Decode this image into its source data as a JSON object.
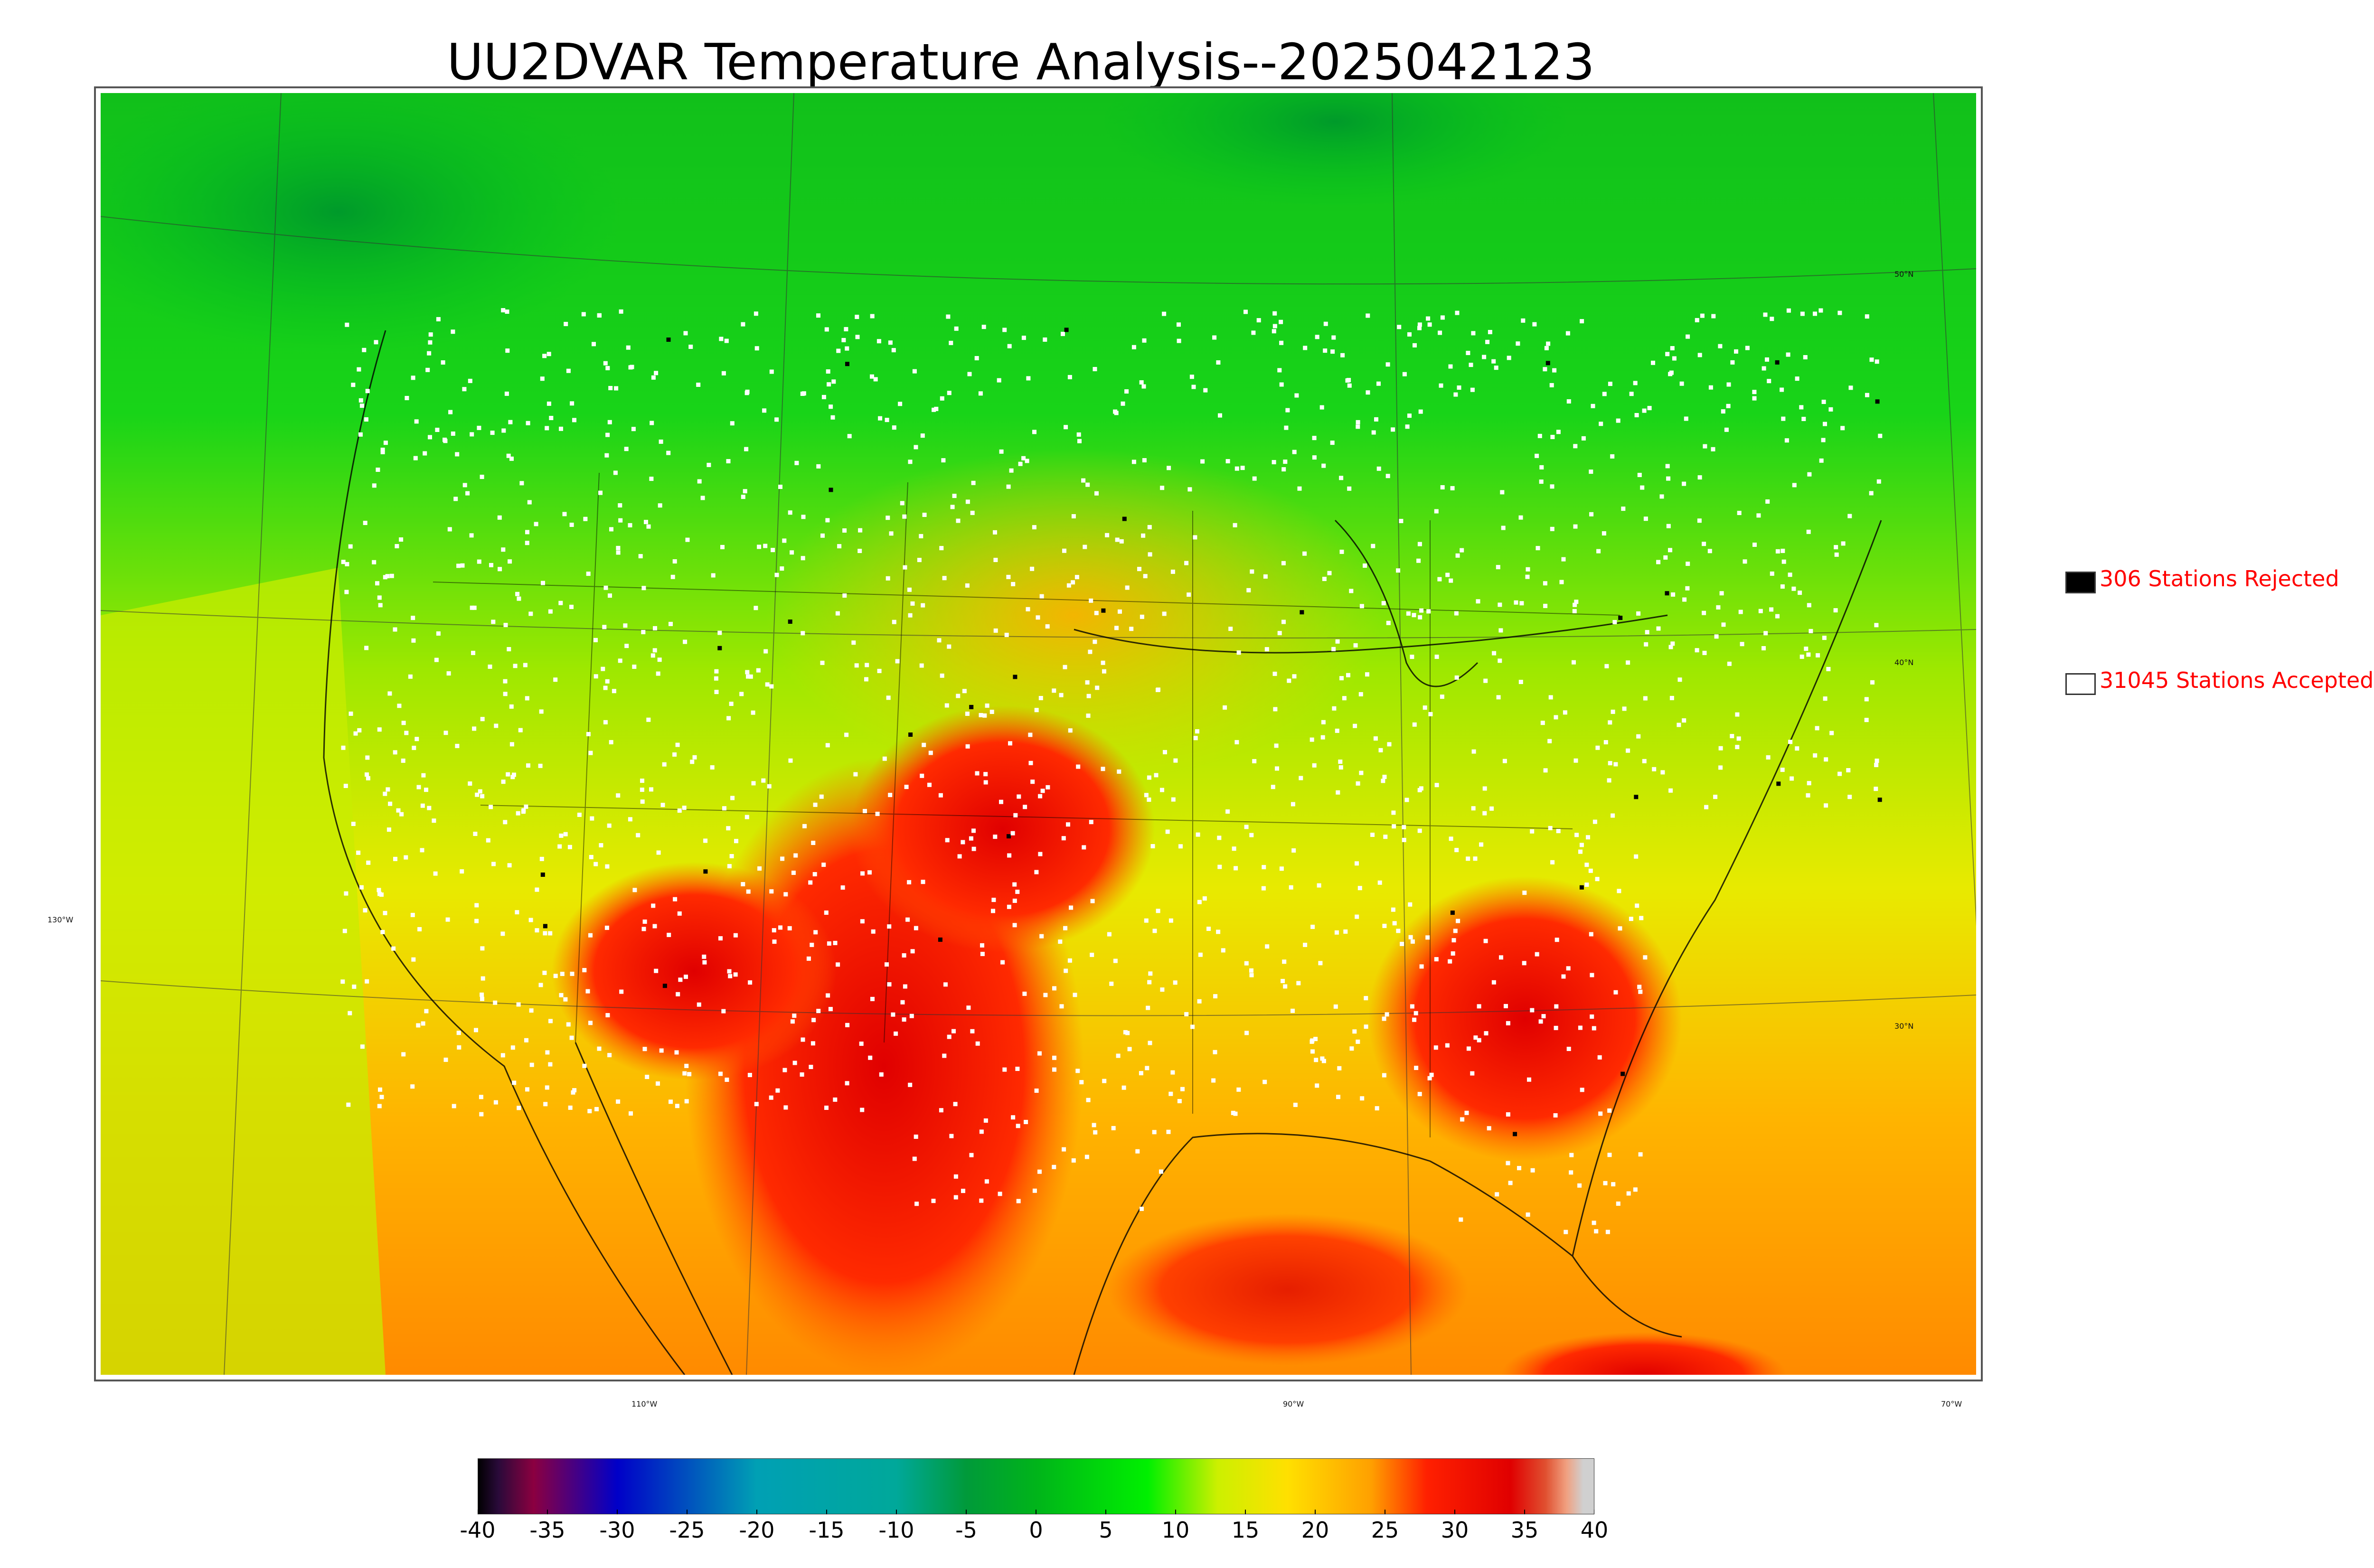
{
  "title": "UU2DVAR Temperature Analysis--2025042123",
  "legend": {
    "rejected": {
      "text": "306 Stations Rejected",
      "swatch_color": "#000000"
    },
    "accepted": {
      "text": "31045 Stations Accepted",
      "swatch_color": "#ffffff"
    }
  },
  "graticule_labels": {
    "lat_50": "50°N",
    "lat_40": "40°N",
    "lat_30": "30°N",
    "lon_130": "130°W",
    "lon_110": "110°W",
    "lon_90": "90°W",
    "lon_70": "70°W"
  },
  "colorbar": {
    "min": -40,
    "max": 40,
    "tick_labels": [
      "-40",
      "-35",
      "-30",
      "-25",
      "-20",
      "-15",
      "-10",
      "-5",
      "0",
      "5",
      "10",
      "15",
      "20",
      "25",
      "30",
      "35",
      "40"
    ],
    "color_stops": [
      {
        "value": -40,
        "color": "#000000"
      },
      {
        "value": -38.5,
        "color": "#2a0a3a"
      },
      {
        "value": -36,
        "color": "#8b0040"
      },
      {
        "value": -30,
        "color": "#0000c8"
      },
      {
        "value": -20,
        "color": "#00a0b4"
      },
      {
        "value": -10,
        "color": "#00a89a"
      },
      {
        "value": -5,
        "color": "#009a3a"
      },
      {
        "value": 0,
        "color": "#00b41a"
      },
      {
        "value": 8,
        "color": "#00f000"
      },
      {
        "value": 13,
        "color": "#ccf000"
      },
      {
        "value": 18,
        "color": "#ffe000"
      },
      {
        "value": 24,
        "color": "#ffa000"
      },
      {
        "value": 28,
        "color": "#ff2000"
      },
      {
        "value": 34,
        "color": "#e00000"
      },
      {
        "value": 36.5,
        "color": "#e05030"
      },
      {
        "value": 38,
        "color": "#f0a080"
      },
      {
        "value": 39.2,
        "color": "#d0d0d0"
      }
    ]
  }
}
